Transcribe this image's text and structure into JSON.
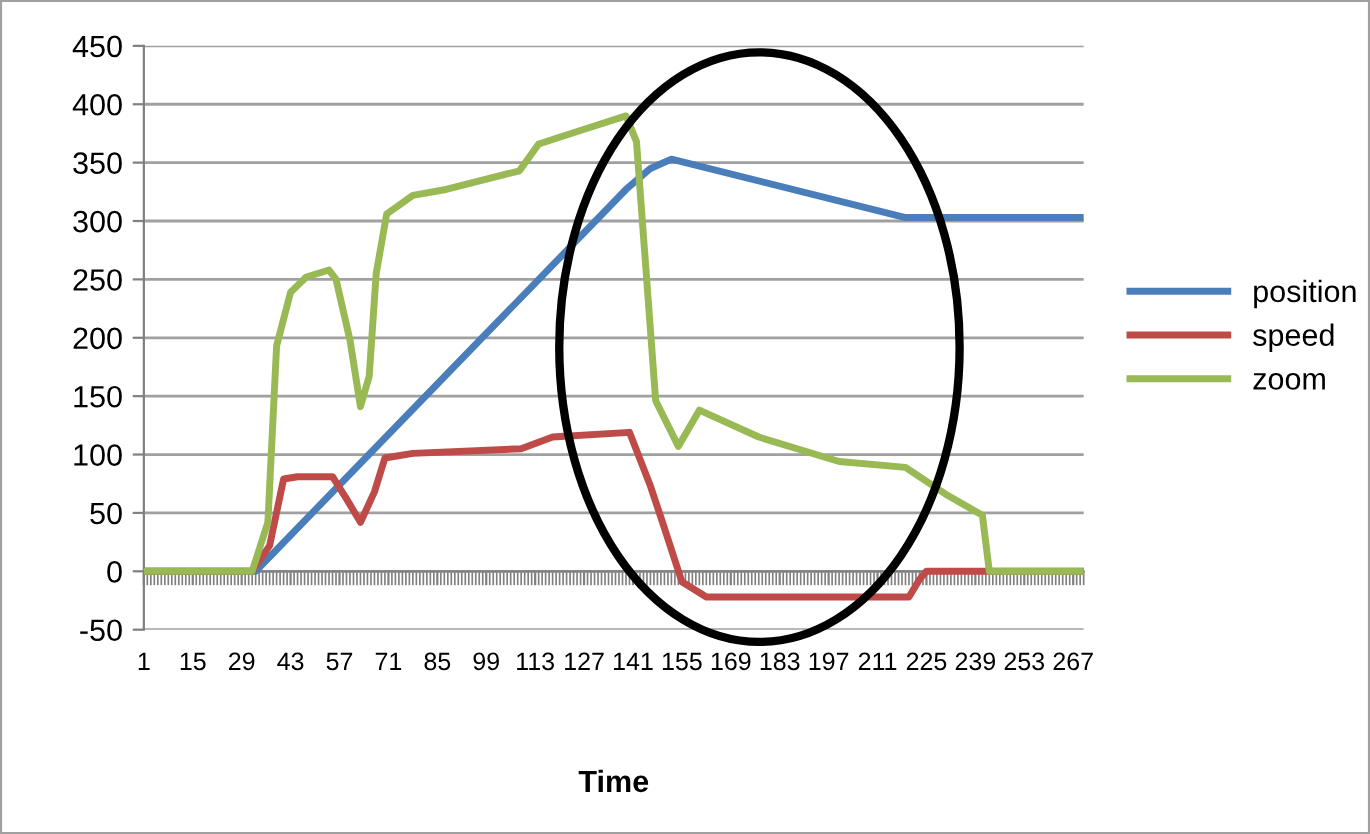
{
  "chart_data": {
    "type": "line",
    "xlabel": "Time",
    "xlim": [
      1,
      270
    ],
    "xticks": [
      1,
      15,
      29,
      43,
      57,
      71,
      85,
      99,
      113,
      127,
      141,
      155,
      169,
      183,
      197,
      211,
      225,
      239,
      253,
      267
    ],
    "ylim": [
      -50,
      450
    ],
    "yticks": [
      -50,
      0,
      50,
      100,
      150,
      200,
      250,
      300,
      350,
      400,
      450
    ],
    "grid": "y",
    "legend": "right",
    "marker": "none",
    "line_style": "solid",
    "series": [
      {
        "name": "position",
        "color": "#4a7ebb",
        "x": [
          1,
          33,
          80,
          139,
          146,
          152,
          219,
          270
        ],
        "values": [
          0,
          0,
          145,
          327,
          345,
          353,
          303,
          303
        ]
      },
      {
        "name": "speed",
        "color": "#be4b48",
        "x": [
          1,
          32,
          37,
          41,
          45,
          55,
          59,
          63,
          67,
          70,
          78,
          109,
          118,
          140,
          146,
          150,
          155,
          162,
          220,
          223,
          225,
          270
        ],
        "values": [
          0,
          0,
          22,
          79,
          81,
          81,
          62,
          42,
          68,
          97,
          101,
          105,
          115,
          119,
          73,
          37,
          -9,
          -22,
          -22,
          -7,
          0,
          0
        ]
      },
      {
        "name": "zoom",
        "color": "#98b954",
        "x": [
          1,
          32,
          36.5,
          39,
          43,
          47.5,
          54,
          56,
          60,
          63,
          65.5,
          67.5,
          70.5,
          78,
          87.5,
          108.5,
          114,
          127.5,
          139,
          142,
          147.5,
          154,
          160,
          177,
          200,
          219,
          230.5,
          241,
          243,
          270
        ],
        "values": [
          0,
          0,
          42,
          193,
          239,
          252,
          258,
          250,
          198,
          141,
          167,
          255,
          306,
          322,
          327,
          343,
          366,
          379,
          390,
          368,
          146,
          107,
          138,
          115,
          94,
          89,
          66,
          48,
          0,
          0
        ]
      }
    ]
  }
}
